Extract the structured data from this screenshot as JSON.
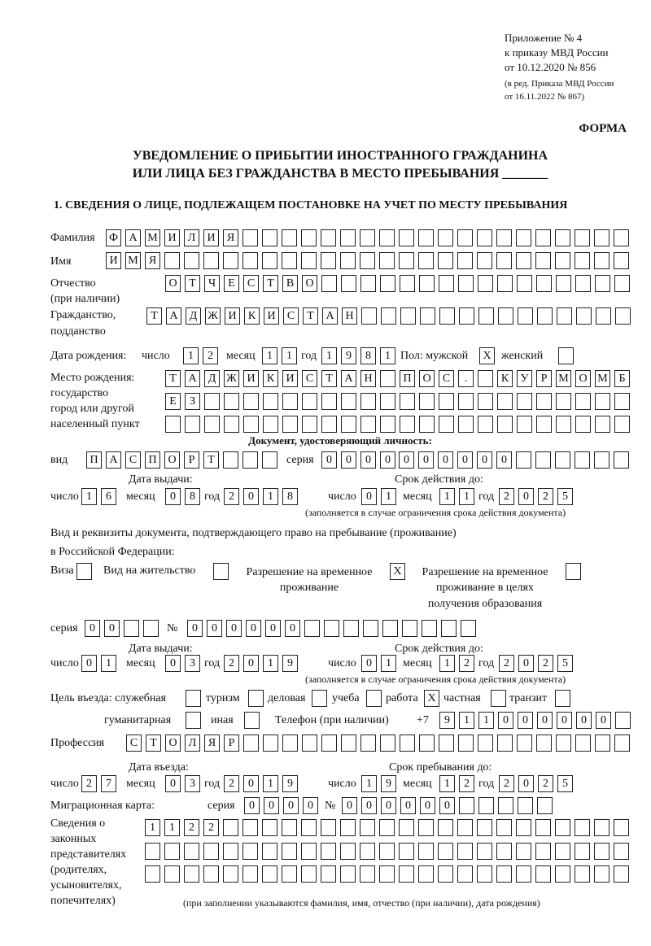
{
  "header": {
    "appendix": "Приложение № 4",
    "order": "к приказу МВД России",
    "order_date": "от 10.12.2020 № 856",
    "edition_1": "(в ред. Приказа МВД России",
    "edition_2": "от 16.11.2022 № 867)",
    "form_label": "ФОРМА",
    "title_1": "УВЕДОМЛЕНИЕ О ПРИБЫТИИ ИНОСТРАННОГО ГРАЖДАНИНА",
    "title_2": "ИЛИ ЛИЦА БЕЗ ГРАЖДАНСТВА В МЕСТО ПРЕБЫВАНИЯ _______",
    "section_1": "1. СВЕДЕНИЯ О ЛИЦЕ, ПОДЛЕЖАЩЕМ ПОСТАНОВКЕ НА УЧЕТ ПО МЕСТУ ПРЕБЫВАНИЯ"
  },
  "labels": {
    "surname": "Фамилия",
    "name": "Имя",
    "patronymic": "Отчество",
    "patronymic_note": "(при наличии)",
    "citizenship": "Гражданство,",
    "citizenship_2": "подданство",
    "birth_date": "Дата рождения:",
    "day": "число",
    "month": "месяц",
    "year": "год",
    "sex": "Пол: мужской",
    "female": "женский",
    "birth_place_1": "Место рождения:",
    "birth_place_2": "государство",
    "birth_place_3": "город или другой",
    "birth_place_4": "населенный пункт",
    "id_doc": "Документ, удостоверяющий личность:",
    "kind": "вид",
    "series": "серия",
    "number": "№",
    "issue_date": "Дата выдачи:",
    "valid_until": "Срок действия до:",
    "valid_note": "(заполняется в случае ограничения срока действия документа)",
    "stay_doc_1": "Вид и реквизиты документа, подтверждающего право на пребывание (проживание)",
    "stay_doc_2": "в Российской Федерации:",
    "visa": "Виза",
    "residence": "Вид на жительство",
    "temp_res_1": "Разрешение на временное",
    "temp_res_2": "проживание",
    "temp_edu_1": "Разрешение на временное",
    "temp_edu_2": "проживание в целях",
    "temp_edu_3": "получения образования",
    "purpose": "Цель въезда: служебная",
    "tourism": "туризм",
    "business": "деловая",
    "study": "учеба",
    "work": "работа",
    "private": "частная",
    "transit": "транзит",
    "humanitarian": "гуманитарная",
    "other": "иная",
    "phone": "Телефон (при наличии)",
    "phone_prefix": "+7",
    "profession": "Профессия",
    "entry_date": "Дата въезда:",
    "stay_until": "Срок пребывания до:",
    "migration_card": "Миграционная карта:",
    "reps_1": "Сведения о",
    "reps_2": "законных",
    "reps_3": "представителях",
    "reps_4": "(родителях,",
    "reps_5": "усыновителях,",
    "reps_6": "попечителях)",
    "reps_note": "(при заполнении указываются фамилия, имя, отчество (при наличии), дата рождения)"
  },
  "fields": {
    "surname": "ФАМИЛИЯ",
    "name": "ИМЯ",
    "patronymic": "ОТЧЕСТВО",
    "citizenship": "ТАДЖИКИСТАН",
    "birth_day": "12",
    "birth_month": "11",
    "birth_year": "1981",
    "sex_male": "X",
    "sex_female": "",
    "birth_place_1": "ТАДЖИКИСТАН ПОС. КУРМОМБ",
    "birth_place_2": "ЕЗ",
    "birth_place_3": "",
    "id_kind": "ПАСПОРТ",
    "id_series": "0000",
    "id_number": "000000",
    "id_issue_day": "16",
    "id_issue_month": "08",
    "id_issue_year": "2018",
    "id_valid_day": "01",
    "id_valid_month": "11",
    "id_valid_year": "2025",
    "visa": "",
    "residence": "",
    "temp_res": "X",
    "temp_edu": "",
    "stay_series": "00",
    "stay_number": "000000",
    "stay_issue_day": "01",
    "stay_issue_month": "03",
    "stay_issue_year": "2019",
    "stay_valid_day": "01",
    "stay_valid_month": "12",
    "stay_valid_year": "2025",
    "p_service": "",
    "p_tourism": "",
    "p_business": "",
    "p_study": "",
    "p_work": "X",
    "p_private": "",
    "p_transit": "",
    "p_humanitarian": "",
    "p_other": "",
    "phone": "911000000",
    "profession": "СТОЛЯР",
    "entry_day": "27",
    "entry_month": "03",
    "entry_year": "2019",
    "stay_day": "19",
    "stay_month": "12",
    "stay_year": "2025",
    "mc_series": "0000",
    "mc_number": "000000",
    "reps_1": "1122",
    "reps_2": "",
    "reps_3": ""
  }
}
